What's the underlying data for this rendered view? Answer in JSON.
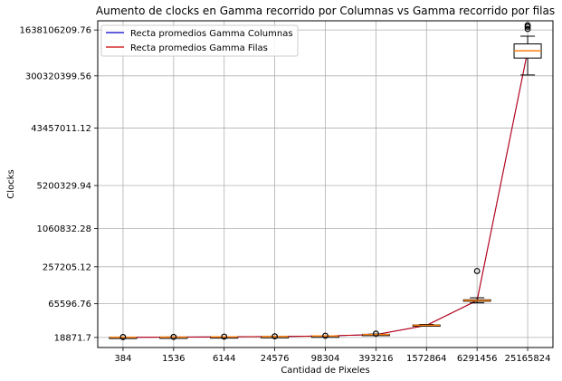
{
  "chart_data": {
    "type": "box+line",
    "title": "Aumento de clocks en Gamma recorrido por Columnas vs Gamma recorrido por filas",
    "xlabel": "Cantidad de Pixeles",
    "ylabel": "Clocks",
    "y_scale": "log",
    "grid": true,
    "legend_position": "top-left",
    "categories": [
      "384",
      "1536",
      "6144",
      "24576",
      "98304",
      "393216",
      "1572864",
      "6291456",
      "25165824"
    ],
    "y_ticks": [
      "18871.7",
      "65596.76",
      "257205.12",
      "1060832.28",
      "5200329.94",
      "43457011.12",
      "300320399.56",
      "1638106209.76"
    ],
    "y_tick_values": [
      18871.7,
      65596.76,
      257205.12,
      1060832.28,
      5200329.94,
      43457011.12,
      300320399.56,
      1638106209.76
    ],
    "ylim": [
      13000,
      2300000000
    ],
    "series": [
      {
        "name": "Recta promedios Gamma Columnas",
        "color": "#0000cc",
        "values": [
          19000,
          19100,
          19300,
          19500,
          19900,
          21000,
          29500,
          74000,
          760000000
        ]
      },
      {
        "name": "Recta promedios Gamma Filas",
        "color": "#cc0000",
        "values": [
          19000,
          19100,
          19300,
          19500,
          19900,
          21000,
          29500,
          74000,
          760000000
        ]
      }
    ],
    "boxes": [
      {
        "category": "384",
        "q1": 18950,
        "median": 19000,
        "q3": 19050,
        "whisker_low": 18900,
        "whisker_high": 19100,
        "outliers": [
          19150
        ]
      },
      {
        "category": "1536",
        "q1": 19050,
        "median": 19100,
        "q3": 19150,
        "whisker_low": 19000,
        "whisker_high": 19200,
        "outliers": [
          19250
        ]
      },
      {
        "category": "6144",
        "q1": 19250,
        "median": 19300,
        "q3": 19350,
        "whisker_low": 19200,
        "whisker_high": 19400,
        "outliers": [
          19450
        ]
      },
      {
        "category": "24576",
        "q1": 19450,
        "median": 19500,
        "q3": 19550,
        "whisker_low": 19400,
        "whisker_high": 19600,
        "outliers": [
          19650
        ]
      },
      {
        "category": "98304",
        "q1": 19850,
        "median": 19900,
        "q3": 19950,
        "whisker_low": 19800,
        "whisker_high": 20000,
        "outliers": [
          20100
        ]
      },
      {
        "category": "393216",
        "q1": 20800,
        "median": 21000,
        "q3": 21200,
        "whisker_low": 20600,
        "whisker_high": 21400,
        "outliers": [
          21700
        ]
      },
      {
        "category": "1572864",
        "q1": 29000,
        "median": 29500,
        "q3": 30000,
        "whisker_low": 28500,
        "whisker_high": 30500,
        "outliers": []
      },
      {
        "category": "6291456",
        "q1": 72000,
        "median": 74000,
        "q3": 76000,
        "whisker_low": 68000,
        "whisker_high": 82000,
        "outliers": [
          220000
        ]
      },
      {
        "category": "25165824",
        "q1": 580000000,
        "median": 760000000,
        "q3": 980000000,
        "whisker_low": 310000000,
        "whisker_high": 1300000000,
        "outliers": [
          1700000000,
          1850000000,
          1950000000
        ]
      }
    ]
  }
}
